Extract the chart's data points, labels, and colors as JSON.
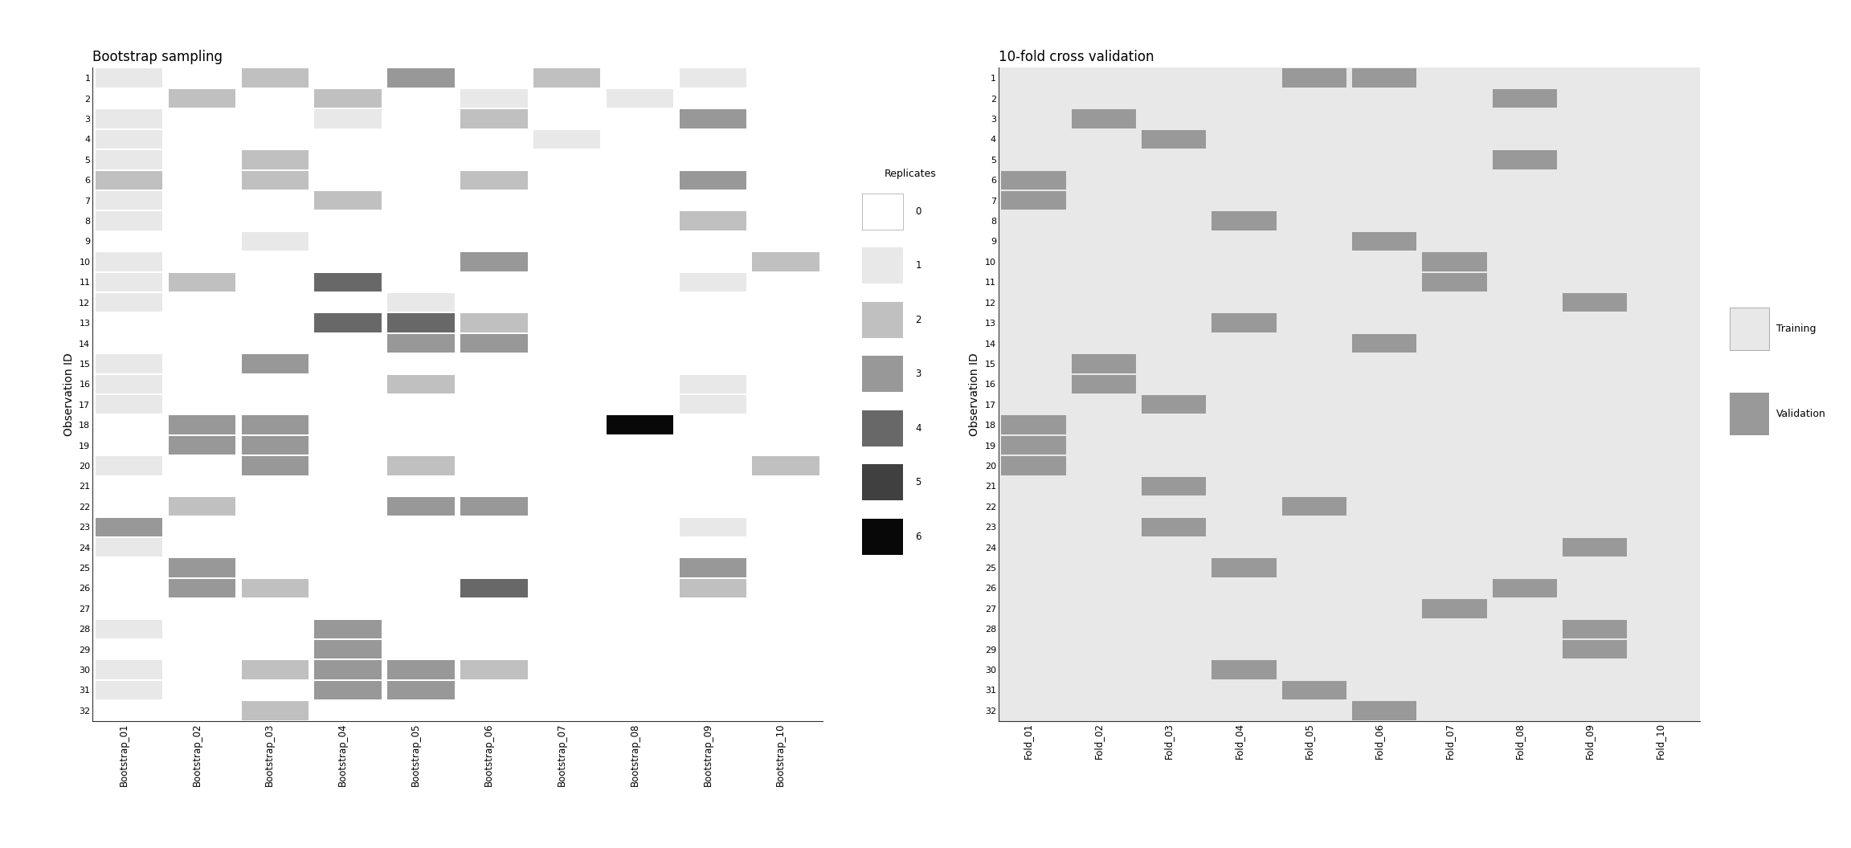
{
  "n_obs": 32,
  "n_bootstrap": 10,
  "n_folds": 10,
  "bootstrap_title": "Bootstrap sampling",
  "cv_title": "10-fold cross validation",
  "ylabel": "Observation ID",
  "replicate_colors": [
    "#ffffff",
    "#e8e8e8",
    "#c0c0c0",
    "#989898",
    "#686868",
    "#404040",
    "#080808"
  ],
  "cv_train_color": "#e8e8e8",
  "cv_val_color": "#999999",
  "bootstrap_bg": "#ffffff",
  "bootstrap_data": [
    [
      1,
      0,
      2,
      0,
      3,
      0,
      2,
      0,
      1,
      0
    ],
    [
      0,
      2,
      0,
      2,
      0,
      1,
      0,
      1,
      0,
      0
    ],
    [
      1,
      0,
      0,
      1,
      0,
      2,
      0,
      0,
      3,
      0
    ],
    [
      1,
      0,
      0,
      0,
      0,
      0,
      1,
      0,
      0,
      0
    ],
    [
      1,
      0,
      2,
      0,
      0,
      0,
      0,
      0,
      0,
      0
    ],
    [
      2,
      0,
      2,
      0,
      0,
      2,
      0,
      0,
      3,
      0
    ],
    [
      1,
      0,
      0,
      2,
      0,
      0,
      0,
      0,
      0,
      0
    ],
    [
      1,
      0,
      0,
      0,
      0,
      0,
      0,
      0,
      2,
      0
    ],
    [
      0,
      0,
      1,
      0,
      0,
      0,
      0,
      0,
      0,
      0
    ],
    [
      1,
      0,
      0,
      0,
      0,
      3,
      0,
      0,
      0,
      2
    ],
    [
      1,
      2,
      0,
      4,
      0,
      0,
      0,
      0,
      1,
      0
    ],
    [
      1,
      0,
      0,
      0,
      1,
      0,
      0,
      0,
      0,
      0
    ],
    [
      0,
      0,
      0,
      4,
      4,
      2,
      0,
      0,
      0,
      0
    ],
    [
      0,
      0,
      0,
      0,
      3,
      3,
      0,
      0,
      0,
      0
    ],
    [
      1,
      0,
      3,
      0,
      0,
      0,
      0,
      0,
      0,
      0
    ],
    [
      1,
      0,
      0,
      0,
      2,
      0,
      0,
      0,
      1,
      0
    ],
    [
      1,
      0,
      0,
      0,
      0,
      0,
      0,
      0,
      1,
      0
    ],
    [
      0,
      3,
      3,
      0,
      0,
      0,
      0,
      6,
      0,
      0
    ],
    [
      0,
      3,
      3,
      0,
      0,
      0,
      0,
      0,
      0,
      0
    ],
    [
      1,
      0,
      3,
      0,
      2,
      0,
      0,
      0,
      0,
      2
    ],
    [
      0,
      0,
      0,
      0,
      0,
      0,
      0,
      0,
      0,
      0
    ],
    [
      0,
      2,
      0,
      0,
      3,
      3,
      0,
      0,
      0,
      0
    ],
    [
      3,
      0,
      0,
      0,
      0,
      0,
      0,
      0,
      1,
      0
    ],
    [
      1,
      0,
      0,
      0,
      0,
      0,
      0,
      0,
      0,
      0
    ],
    [
      0,
      3,
      0,
      0,
      0,
      0,
      0,
      0,
      3,
      0
    ],
    [
      0,
      3,
      2,
      0,
      0,
      4,
      0,
      0,
      2,
      0
    ],
    [
      0,
      0,
      0,
      0,
      0,
      0,
      0,
      0,
      0,
      0
    ],
    [
      1,
      0,
      0,
      3,
      0,
      0,
      0,
      0,
      0,
      0
    ],
    [
      0,
      0,
      0,
      3,
      0,
      0,
      0,
      0,
      0,
      0
    ],
    [
      1,
      0,
      2,
      3,
      3,
      2,
      0,
      0,
      0,
      0
    ],
    [
      1,
      0,
      0,
      3,
      3,
      0,
      0,
      0,
      0,
      0
    ],
    [
      0,
      0,
      2,
      0,
      0,
      0,
      0,
      0,
      0,
      0
    ]
  ],
  "cv_data": [
    [
      0,
      0,
      0,
      0,
      1,
      1,
      0,
      0,
      0,
      0
    ],
    [
      0,
      0,
      0,
      0,
      0,
      0,
      0,
      1,
      0,
      0
    ],
    [
      0,
      1,
      0,
      0,
      0,
      0,
      0,
      0,
      0,
      0
    ],
    [
      0,
      0,
      1,
      0,
      0,
      0,
      0,
      0,
      0,
      0
    ],
    [
      0,
      0,
      0,
      0,
      0,
      0,
      0,
      1,
      0,
      0
    ],
    [
      1,
      0,
      0,
      0,
      0,
      0,
      0,
      0,
      0,
      0
    ],
    [
      1,
      0,
      0,
      0,
      0,
      0,
      0,
      0,
      0,
      0
    ],
    [
      0,
      0,
      0,
      1,
      0,
      0,
      0,
      0,
      0,
      0
    ],
    [
      0,
      0,
      0,
      0,
      0,
      1,
      0,
      0,
      0,
      0
    ],
    [
      0,
      0,
      0,
      0,
      0,
      0,
      1,
      0,
      0,
      0
    ],
    [
      0,
      0,
      0,
      0,
      0,
      0,
      1,
      0,
      0,
      0
    ],
    [
      0,
      0,
      0,
      0,
      0,
      0,
      0,
      0,
      1,
      0
    ],
    [
      0,
      0,
      0,
      1,
      0,
      0,
      0,
      0,
      0,
      0
    ],
    [
      0,
      0,
      0,
      0,
      0,
      1,
      0,
      0,
      0,
      0
    ],
    [
      0,
      1,
      0,
      0,
      0,
      0,
      0,
      0,
      0,
      0
    ],
    [
      0,
      1,
      0,
      0,
      0,
      0,
      0,
      0,
      0,
      0
    ],
    [
      0,
      0,
      1,
      0,
      0,
      0,
      0,
      0,
      0,
      0
    ],
    [
      1,
      0,
      0,
      0,
      0,
      0,
      0,
      0,
      0,
      0
    ],
    [
      1,
      0,
      0,
      0,
      0,
      0,
      0,
      0,
      0,
      0
    ],
    [
      1,
      0,
      0,
      0,
      0,
      0,
      0,
      0,
      0,
      0
    ],
    [
      0,
      0,
      1,
      0,
      0,
      0,
      0,
      0,
      0,
      0
    ],
    [
      0,
      0,
      0,
      0,
      1,
      0,
      0,
      0,
      0,
      0
    ],
    [
      0,
      0,
      1,
      0,
      0,
      0,
      0,
      0,
      0,
      0
    ],
    [
      0,
      0,
      0,
      0,
      0,
      0,
      0,
      0,
      1,
      0
    ],
    [
      0,
      0,
      0,
      1,
      0,
      0,
      0,
      0,
      0,
      0
    ],
    [
      0,
      0,
      0,
      0,
      0,
      0,
      0,
      1,
      0,
      0
    ],
    [
      0,
      0,
      0,
      0,
      0,
      0,
      1,
      0,
      0,
      0
    ],
    [
      0,
      0,
      0,
      0,
      0,
      0,
      0,
      0,
      1,
      0
    ],
    [
      0,
      0,
      0,
      0,
      0,
      0,
      0,
      0,
      1,
      0
    ],
    [
      0,
      0,
      0,
      1,
      0,
      0,
      0,
      0,
      0,
      0
    ],
    [
      0,
      0,
      0,
      0,
      1,
      0,
      0,
      0,
      0,
      0
    ],
    [
      0,
      0,
      0,
      0,
      0,
      1,
      0,
      0,
      0,
      0
    ]
  ]
}
